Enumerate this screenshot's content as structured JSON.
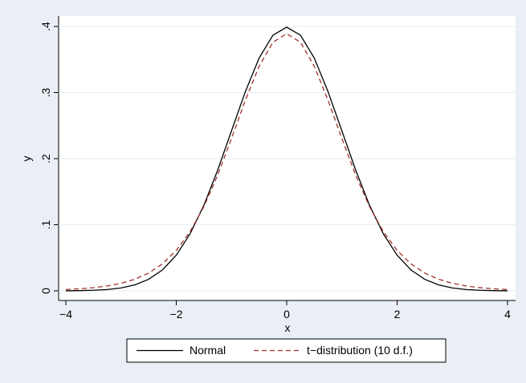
{
  "chart_data": {
    "type": "line",
    "x": [
      -4,
      -3.75,
      -3.5,
      -3.25,
      -3,
      -2.75,
      -2.5,
      -2.25,
      -2,
      -1.75,
      -1.5,
      -1.25,
      -1,
      -0.75,
      -0.5,
      -0.25,
      0,
      0.25,
      0.5,
      0.75,
      1,
      1.25,
      1.5,
      1.75,
      2,
      2.25,
      2.5,
      2.75,
      3,
      3.25,
      3.5,
      3.75,
      4
    ],
    "series": [
      {
        "name": "Normal",
        "color": "#000000",
        "dash": "solid",
        "values": [
          0.0001,
          0.0004,
          0.0009,
          0.002,
          0.0044,
          0.0091,
          0.0175,
          0.0317,
          0.054,
          0.0863,
          0.1295,
          0.1826,
          0.242,
          0.3011,
          0.3521,
          0.3867,
          0.3989,
          0.3867,
          0.3521,
          0.3011,
          0.242,
          0.1826,
          0.1295,
          0.0863,
          0.054,
          0.0317,
          0.0175,
          0.0091,
          0.0044,
          0.002,
          0.0009,
          0.0004,
          0.0001
        ]
      },
      {
        "name": "t−distribution (10 d.f.)",
        "color": "#a0302e",
        "dash": "dashed",
        "values": [
          0.002,
          0.0031,
          0.0048,
          0.0074,
          0.0114,
          0.0176,
          0.0269,
          0.0409,
          0.0611,
          0.0895,
          0.1274,
          0.1751,
          0.2304,
          0.288,
          0.3397,
          0.376,
          0.3891,
          0.376,
          0.3397,
          0.288,
          0.2304,
          0.1751,
          0.1274,
          0.0895,
          0.0611,
          0.0409,
          0.0269,
          0.0176,
          0.0114,
          0.0074,
          0.0048,
          0.0031,
          0.002
        ]
      }
    ],
    "xlabel": "x",
    "ylabel": "y",
    "xlim": [
      -4,
      4
    ],
    "xticks": [
      {
        "value": -4,
        "label": "−4"
      },
      {
        "value": -2,
        "label": "−2"
      },
      0,
      2,
      4
    ],
    "ylim": [
      0,
      0.4
    ],
    "yticks": [
      0,
      {
        "value": 0.1,
        "label": ".1"
      },
      {
        "value": 0.2,
        "label": ".2"
      },
      {
        "value": 0.3,
        "label": ".3"
      },
      {
        "value": 0.4,
        "label": ".4"
      }
    ],
    "grid": true,
    "legend": "bottom"
  }
}
